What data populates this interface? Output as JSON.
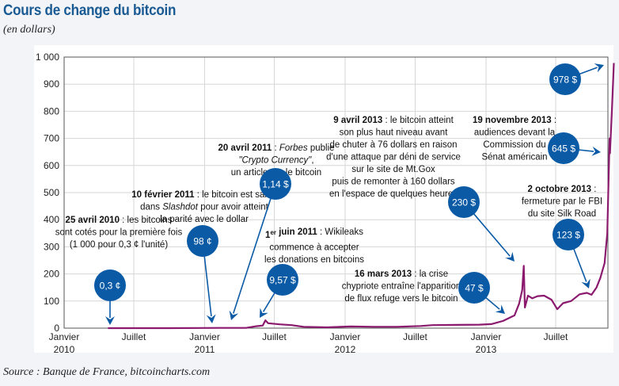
{
  "title": "Cours de change du bitcoin",
  "subtitle": "(en dollars)",
  "source": "Source : Banque de France, bitcoincharts.com",
  "colors": {
    "line": "#8b1a6e",
    "bubble": "#0b5aa6",
    "title": "#1a5a93",
    "grid": "#d6d6d6"
  },
  "chart_data": {
    "type": "line",
    "title": "Cours de change du bitcoin",
    "ylabel": "(en dollars)",
    "ylim": [
      0,
      1000
    ],
    "yticks": [
      "0",
      "100",
      "200",
      "300",
      "400",
      "500",
      "600",
      "700",
      "800",
      "900",
      "1 000"
    ],
    "xlim": [
      "2010-01-01",
      "2013-12-01"
    ],
    "xticks": [
      {
        "date": "2010-01-01",
        "line1": "Janvier",
        "line2": "2010"
      },
      {
        "date": "2010-07-01",
        "line1": "Juillet",
        "line2": ""
      },
      {
        "date": "2011-01-01",
        "line1": "Janvier",
        "line2": "2011"
      },
      {
        "date": "2011-07-01",
        "line1": "Juillet",
        "line2": ""
      },
      {
        "date": "2012-01-01",
        "line1": "Janvier",
        "line2": "2012"
      },
      {
        "date": "2012-07-01",
        "line1": "Juillet",
        "line2": ""
      },
      {
        "date": "2013-01-01",
        "line1": "Janvier",
        "line2": "2013"
      },
      {
        "date": "2013-07-01",
        "line1": "Juillet",
        "line2": ""
      }
    ],
    "grid": true,
    "series": [
      {
        "points": [
          [
            "2010-04-25",
            0.003
          ],
          [
            "2010-10-01",
            0.06
          ],
          [
            "2011-02-10",
            0.98
          ],
          [
            "2011-04-20",
            1.14
          ],
          [
            "2011-05-15",
            7
          ],
          [
            "2011-06-01",
            9.57
          ],
          [
            "2011-06-08",
            29
          ],
          [
            "2011-06-15",
            18
          ],
          [
            "2011-07-15",
            14
          ],
          [
            "2011-08-15",
            11
          ],
          [
            "2011-09-15",
            5
          ],
          [
            "2011-11-15",
            3
          ],
          [
            "2012-01-15",
            6
          ],
          [
            "2012-03-15",
            5
          ],
          [
            "2012-05-15",
            5
          ],
          [
            "2012-07-15",
            8
          ],
          [
            "2012-08-15",
            11
          ],
          [
            "2012-10-15",
            12
          ],
          [
            "2012-12-15",
            13
          ],
          [
            "2013-01-15",
            15
          ],
          [
            "2013-02-15",
            27
          ],
          [
            "2013-03-16",
            47
          ],
          [
            "2013-03-28",
            90
          ],
          [
            "2013-04-05",
            140
          ],
          [
            "2013-04-09",
            230
          ],
          [
            "2013-04-12",
            76
          ],
          [
            "2013-04-20",
            120
          ],
          [
            "2013-05-01",
            110
          ],
          [
            "2013-05-15",
            118
          ],
          [
            "2013-06-01",
            120
          ],
          [
            "2013-06-20",
            105
          ],
          [
            "2013-07-05",
            70
          ],
          [
            "2013-07-20",
            92
          ],
          [
            "2013-08-10",
            100
          ],
          [
            "2013-09-01",
            125
          ],
          [
            "2013-09-20",
            130
          ],
          [
            "2013-10-02",
            123
          ],
          [
            "2013-10-15",
            150
          ],
          [
            "2013-10-25",
            185
          ],
          [
            "2013-11-05",
            240
          ],
          [
            "2013-11-12",
            350
          ],
          [
            "2013-11-18",
            700
          ],
          [
            "2013-11-19",
            645
          ],
          [
            "2013-11-24",
            800
          ],
          [
            "2013-11-29",
            978
          ]
        ]
      }
    ],
    "annotations": [
      {
        "bubble": "0,3 ¢",
        "lines": [
          [
            [
              "25 avril 2010",
              "b"
            ],
            [
              " : les bitcoins",
              ""
            ]
          ],
          [
            [
              "sont cotés pour la première fois",
              ""
            ]
          ],
          [
            [
              "(1 000 pour 0,3 ¢ l'unité)",
              ""
            ]
          ]
        ]
      },
      {
        "bubble": "98 ¢",
        "lines": [
          [
            [
              "10 février 2011",
              "b"
            ],
            [
              " : le bitcoin est salué",
              ""
            ]
          ],
          [
            [
              "dans ",
              ""
            ],
            [
              "Slashdot",
              "i"
            ],
            [
              " pour avoir atteint",
              ""
            ]
          ],
          [
            [
              "la parité avec le dollar",
              ""
            ]
          ]
        ]
      },
      {
        "bubble": "1,14 $",
        "lines": [
          [
            [
              "20 avril 2011",
              "b"
            ],
            [
              " : ",
              ""
            ],
            [
              "Forbes",
              "i"
            ],
            [
              " publie",
              ""
            ]
          ],
          [
            [
              "\"Crypto Currency\"",
              "i"
            ],
            [
              ",",
              ""
            ]
          ],
          [
            [
              "un article sur le bitcoin",
              ""
            ]
          ]
        ]
      },
      {
        "bubble": "9,57 $",
        "lines": [
          [
            [
              "1",
              "b"
            ],
            [
              "er",
              "bs"
            ],
            [
              " juin 2011",
              "b"
            ],
            [
              " : Wikileaks",
              ""
            ]
          ],
          [
            [
              "commence à accepter",
              ""
            ]
          ],
          [
            [
              "les donations en bitcoins",
              ""
            ]
          ]
        ]
      },
      {
        "bubble": "230 $",
        "lines": [
          [
            [
              "9 avril 2013",
              "b"
            ],
            [
              " : le bitcoin atteint",
              ""
            ]
          ],
          [
            [
              "son plus haut niveau avant",
              ""
            ]
          ],
          [
            [
              "de chuter à 76 dollars en raison",
              ""
            ]
          ],
          [
            [
              "d'une attaque par déni de service",
              ""
            ]
          ],
          [
            [
              "sur le site de Mt.Gox",
              ""
            ]
          ],
          [
            [
              "puis de remonter à 160 dollars",
              ""
            ]
          ],
          [
            [
              "en l'espace de quelques heures",
              ""
            ]
          ]
        ]
      },
      {
        "bubble": "47 $",
        "lines": [
          [
            [
              "16 mars 2013",
              "b"
            ],
            [
              " : la crise",
              ""
            ]
          ],
          [
            [
              "chypriote entraîne l'apparition",
              ""
            ]
          ],
          [
            [
              "de flux refuge vers le bitcoin",
              ""
            ]
          ]
        ]
      },
      {
        "bubble": "645 $",
        "lines": [
          [
            [
              "19 novembre 2013",
              "b"
            ],
            [
              " :",
              ""
            ]
          ],
          [
            [
              "audiences devant la",
              ""
            ]
          ],
          [
            [
              "Commission du",
              ""
            ]
          ],
          [
            [
              "Sénat américain",
              ""
            ]
          ]
        ]
      },
      {
        "bubble": "123 $",
        "lines": [
          [
            [
              "2 octobre 2013",
              "b"
            ],
            [
              " :",
              ""
            ]
          ],
          [
            [
              "fermeture par le FBI",
              ""
            ]
          ],
          [
            [
              "du site Silk Road",
              ""
            ]
          ]
        ]
      },
      {
        "bubble": "978 $",
        "lines": []
      }
    ]
  }
}
